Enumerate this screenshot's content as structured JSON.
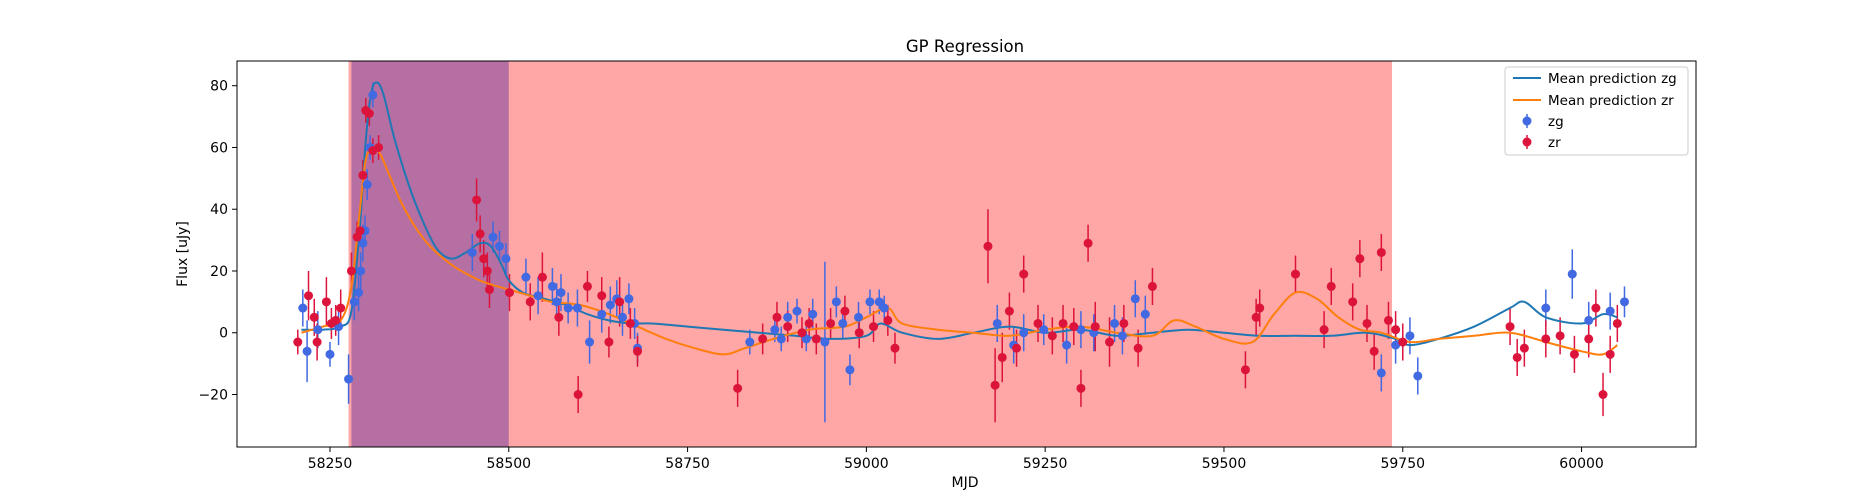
{
  "chart_data": {
    "type": "scatter",
    "title": "GP Regression",
    "xlabel": "MJD",
    "ylabel": "Flux [uJy]",
    "xlim": [
      58120,
      60160
    ],
    "ylim": [
      -37,
      88
    ],
    "x_ticks": [
      58250,
      58500,
      58750,
      59000,
      59250,
      59500,
      59750,
      60000
    ],
    "y_ticks": [
      -20,
      0,
      20,
      40,
      60,
      80
    ],
    "x_tick_labels": [
      "58250",
      "58500",
      "58750",
      "59000",
      "59250",
      "59500",
      "59750",
      "60000"
    ],
    "y_tick_labels": [
      "−20",
      "0",
      "20",
      "40",
      "60",
      "80"
    ],
    "legend": {
      "position": "upper right",
      "entries": [
        "Mean prediction zg",
        "Mean prediction zr",
        "zg",
        "zr"
      ]
    },
    "shaded_regions": [
      {
        "x_start": 58276,
        "x_end": 59735,
        "color": "#ff0000",
        "alpha": 0.35
      },
      {
        "x_start": 58280,
        "x_end": 58500,
        "color": "#5b2c9e",
        "alpha": 0.45
      }
    ],
    "lines": [
      {
        "name": "Mean prediction zg",
        "color": "#1f77b4",
        "x": [
          58210,
          58240,
          58265,
          58280,
          58292,
          58300,
          58308,
          58316,
          58325,
          58340,
          58360,
          58380,
          58400,
          58420,
          58440,
          58460,
          58475,
          58490,
          58500,
          58520,
          58550,
          58580,
          58610,
          58640,
          58670,
          58700,
          58750,
          58800,
          58850,
          58900,
          58950,
          59000,
          59020,
          59050,
          59100,
          59150,
          59200,
          59250,
          59300,
          59350,
          59400,
          59450,
          59500,
          59550,
          59600,
          59650,
          59700,
          59740,
          59760,
          59800,
          59850,
          59900,
          59920,
          59950,
          60000,
          60030,
          60050
        ],
        "y": [
          1,
          1,
          2,
          7,
          35,
          62,
          78,
          81,
          77,
          63,
          48,
          36,
          27,
          24,
          26,
          29,
          28,
          22,
          17,
          13,
          11,
          9,
          6,
          4,
          3,
          3,
          2,
          1,
          0,
          -1,
          -2,
          -1,
          3,
          0,
          -2,
          0,
          2,
          0,
          1,
          -1,
          0,
          1,
          0,
          -1,
          -1,
          -1,
          0,
          -2,
          -4,
          -2,
          2,
          8,
          10,
          5,
          3,
          6,
          5
        ]
      },
      {
        "name": "Mean prediction zr",
        "color": "#ff7f0e",
        "x": [
          58210,
          58240,
          58265,
          58280,
          58292,
          58300,
          58310,
          58320,
          58335,
          58350,
          58370,
          58390,
          58420,
          58450,
          58470,
          58500,
          58530,
          58560,
          58600,
          58640,
          58680,
          58720,
          58760,
          58800,
          58830,
          58870,
          58920,
          58970,
          59000,
          59030,
          59050,
          59100,
          59150,
          59200,
          59250,
          59300,
          59350,
          59400,
          59430,
          59460,
          59500,
          59540,
          59570,
          59600,
          59630,
          59660,
          59690,
          59720,
          59760,
          59800,
          59850,
          59900,
          59950,
          60000,
          60030,
          60050
        ],
        "y": [
          0,
          2,
          4,
          15,
          40,
          56,
          60,
          58,
          50,
          42,
          34,
          28,
          22,
          18,
          16,
          14,
          12,
          10,
          9,
          6,
          2,
          -2,
          -5,
          -7,
          -5,
          -2,
          1,
          2,
          5,
          8,
          3,
          1,
          0,
          -1,
          1,
          2,
          0,
          -1,
          4,
          2,
          -2,
          -3,
          6,
          13,
          11,
          5,
          1,
          0,
          -3,
          -2,
          -1,
          0,
          -3,
          -6,
          -7,
          -4
        ]
      }
    ],
    "series": [
      {
        "name": "zg",
        "color": "#4169e1",
        "x": [
          58212,
          58218,
          58233,
          58250,
          58262,
          58276,
          58284,
          58290,
          58293,
          58296,
          58299,
          58302,
          58306,
          58310,
          58449,
          58478,
          58487,
          58496,
          58524,
          58541,
          58561,
          58567,
          58573,
          58583,
          58596,
          58613,
          58630,
          58642,
          58651,
          58659,
          58668,
          58676,
          58680,
          58837,
          58872,
          58881,
          58890,
          58903,
          58916,
          58925,
          58942,
          58958,
          58967,
          58977,
          58989,
          59005,
          59018,
          59025,
          59183,
          59206,
          59220,
          59248,
          59280,
          59300,
          59318,
          59347,
          59358,
          59376,
          59390,
          59720,
          59740,
          59760,
          59771,
          59950,
          59987,
          60010,
          60040,
          60060
        ],
        "y": [
          8,
          -6,
          1,
          -7,
          2,
          -15,
          10,
          13,
          20,
          29,
          33,
          48,
          60,
          77,
          26,
          31,
          28,
          24,
          18,
          12,
          15,
          10,
          13,
          8,
          8,
          -3,
          6,
          9,
          11,
          5,
          11,
          3,
          -5,
          -3,
          1,
          -2,
          5,
          7,
          -2,
          6,
          -3,
          10,
          3,
          -12,
          5,
          10,
          10,
          8,
          3,
          -4,
          0,
          1,
          -4,
          1,
          0,
          3,
          -1,
          11,
          6,
          -13,
          -4,
          -1,
          -14,
          8,
          19,
          4,
          7,
          10
        ],
        "err": [
          6,
          10,
          6,
          4,
          6,
          8,
          6,
          6,
          6,
          6,
          5,
          5,
          4,
          4,
          6,
          5,
          5,
          5,
          6,
          6,
          6,
          6,
          6,
          5,
          6,
          7,
          6,
          6,
          6,
          6,
          5,
          5,
          5,
          4,
          4,
          4,
          5,
          4,
          4,
          5,
          26,
          5,
          5,
          5,
          5,
          4,
          4,
          4,
          6,
          6,
          6,
          5,
          6,
          6,
          6,
          6,
          6,
          6,
          6,
          6,
          6,
          6,
          6,
          6,
          8,
          6,
          6,
          5
        ]
      },
      {
        "name": "zr",
        "color": "#dc143c",
        "x": [
          58205,
          58220,
          58228,
          58232,
          58245,
          58252,
          58258,
          58265,
          58280,
          58288,
          58292,
          58296,
          58300,
          58305,
          58310,
          58318,
          58455,
          58460,
          58465,
          58470,
          58473,
          58501,
          58530,
          58547,
          58570,
          58597,
          58610,
          58630,
          58640,
          58655,
          58670,
          58680,
          58820,
          58855,
          58875,
          58890,
          58910,
          58920,
          58930,
          58950,
          58970,
          58990,
          59010,
          59030,
          59040,
          59170,
          59180,
          59190,
          59200,
          59210,
          59220,
          59240,
          59260,
          59275,
          59290,
          59300,
          59310,
          59320,
          59340,
          59360,
          59380,
          59400,
          59530,
          59545,
          59550,
          59600,
          59640,
          59650,
          59680,
          59690,
          59700,
          59710,
          59720,
          59730,
          59740,
          59750,
          59900,
          59910,
          59920,
          59950,
          59970,
          59990,
          60010,
          60020,
          60030,
          60040,
          60050
        ],
        "y": [
          -3,
          12,
          5,
          -3,
          10,
          3,
          4,
          8,
          20,
          31,
          33,
          51,
          72,
          71,
          59,
          60,
          43,
          32,
          24,
          20,
          14,
          13,
          10,
          18,
          5,
          -20,
          15,
          12,
          -3,
          10,
          3,
          -6,
          -18,
          -2,
          5,
          2,
          0,
          3,
          -2,
          3,
          7,
          0,
          2,
          4,
          -5,
          28,
          -17,
          -8,
          7,
          -5,
          19,
          3,
          -1,
          3,
          2,
          -18,
          29,
          2,
          -3,
          3,
          -5,
          15,
          -12,
          5,
          8,
          19,
          1,
          15,
          10,
          24,
          3,
          -6,
          26,
          4,
          1,
          -3,
          2,
          -8,
          -5,
          -2,
          -1,
          -7,
          -2,
          8,
          -20,
          -7,
          3
        ],
        "err": [
          4,
          8,
          6,
          6,
          8,
          5,
          5,
          6,
          6,
          5,
          5,
          5,
          4,
          4,
          4,
          4,
          7,
          6,
          6,
          6,
          6,
          6,
          6,
          8,
          6,
          6,
          5,
          6,
          5,
          8,
          5,
          5,
          6,
          5,
          5,
          5,
          5,
          5,
          5,
          5,
          5,
          5,
          5,
          5,
          5,
          12,
          12,
          8,
          6,
          6,
          6,
          6,
          6,
          6,
          6,
          6,
          6,
          8,
          8,
          6,
          6,
          6,
          6,
          6,
          6,
          6,
          6,
          6,
          6,
          6,
          6,
          6,
          6,
          6,
          6,
          6,
          6,
          6,
          6,
          6,
          6,
          6,
          6,
          6,
          7,
          6,
          6
        ]
      }
    ]
  }
}
